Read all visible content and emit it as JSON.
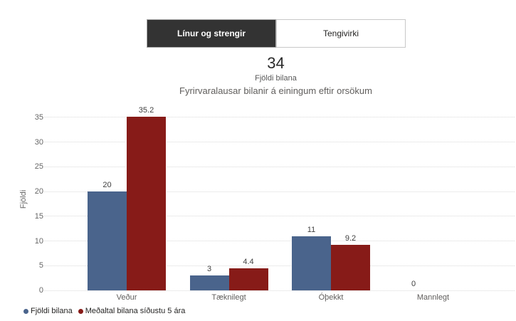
{
  "toggle": {
    "options": [
      {
        "label": "Línur og strengir",
        "selected": true
      },
      {
        "label": "Tengivirki",
        "selected": false
      }
    ],
    "active_bg": "#333333"
  },
  "kpi": {
    "value": "34",
    "label": "Fjöldi bilana"
  },
  "chart_data": {
    "type": "bar",
    "title": "Fyrirvaralausar bilanir á einingum eftir orsökum",
    "categories": [
      "Veður",
      "Tæknilegt",
      "Óþekkt",
      "Mannlegt"
    ],
    "series": [
      {
        "name": "Fjöldi bilana",
        "color": "#4a648c",
        "values": [
          20,
          3,
          11,
          0
        ]
      },
      {
        "name": "Meðaltal bilana síðustu 5 ára",
        "color": "#871b18",
        "values": [
          35.2,
          4.4,
          9.2,
          null
        ]
      }
    ],
    "data_labels": true,
    "xlabel": "",
    "ylabel": "Fjöldi",
    "ylim": [
      0,
      35
    ],
    "ytick_step": 5,
    "grid": "horizontal-dotted",
    "gridline_color": "#d9d9d9",
    "legend_position": "bottom-left"
  }
}
